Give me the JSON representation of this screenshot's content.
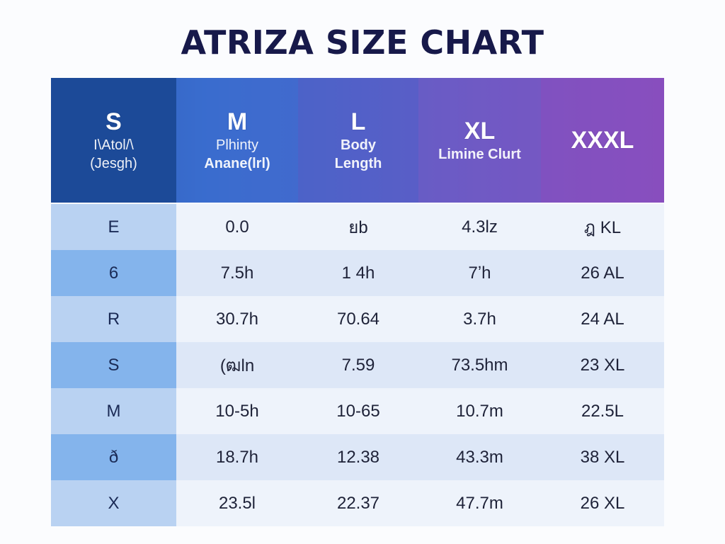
{
  "title": "ATRIZA SIZE CHART",
  "chart_data": {
    "type": "table",
    "title": "ATRIZA SIZE CHART",
    "header": [
      {
        "size": "S",
        "lines": [
          "I\\Atol/\\",
          "(Jesgh)"
        ]
      },
      {
        "size": "M",
        "lines": [
          "Plhinty",
          "Anane(lrl)"
        ]
      },
      {
        "size": "L",
        "lines": [
          "Body",
          "Length"
        ]
      },
      {
        "size": "XL",
        "lines": [
          "Limine Clurt"
        ]
      },
      {
        "size": "XXXL",
        "lines": []
      }
    ],
    "rows": [
      [
        "E",
        "0.0",
        "ยb",
        "4.3lz",
        "ฎ KL"
      ],
      [
        "6",
        "7.5h",
        "1 4h",
        "7ʼh",
        "26 AL"
      ],
      [
        "R",
        "30.7h",
        "70.64",
        "3.7h",
        "24 AL"
      ],
      [
        "S",
        "(ฒln",
        "7.59",
        "73.5hm",
        "23 XL"
      ],
      [
        "M",
        "10-5h",
        "10-65",
        "10.7m",
        "22.5L"
      ],
      [
        "ð",
        "18.7h",
        "12.38",
        "43.3m",
        "38 XL"
      ],
      [
        "X",
        "23.5l",
        "22.37",
        "47.7m",
        "26 XL"
      ]
    ]
  },
  "colors": {
    "title": "#17194a",
    "header_start": "#1a4fa0",
    "header_end": "#8a4fbf",
    "first_col_light": "#b9d2f2",
    "first_col_dark": "#84b4ec",
    "row_light": "#eef3fb",
    "row_dark": "#dde7f7"
  }
}
